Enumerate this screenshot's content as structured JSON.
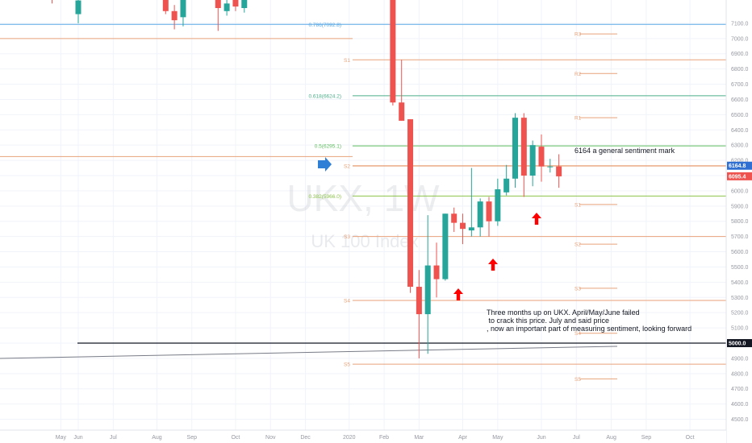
{
  "chart_data": {
    "type": "candlestick",
    "symbol_watermark": "UKX, 1W",
    "name_watermark": "UK 100 Index",
    "ylim": [
      4450,
      7200
    ],
    "y_ticks": [
      4500,
      4600,
      4700,
      4800,
      4900,
      5000,
      5100,
      5200,
      5300,
      5400,
      5500,
      5600,
      5700,
      5800,
      5900,
      6000,
      6100,
      6200,
      6300,
      6400,
      6500,
      6600,
      6700,
      6800,
      6900,
      7000,
      7100
    ],
    "y_tick_labels": [
      "4500.0",
      "4600.0",
      "4700.0",
      "4800.0",
      "4900.0",
      "5000.0",
      "5100.0",
      "5200.0",
      "5300.0",
      "5400.0",
      "5500.0",
      "5600.0",
      "5700.0",
      "5800.0",
      "5900.0",
      "6000.0",
      "6100.0",
      "6200.0",
      "6300.0",
      "6400.0",
      "6500.0",
      "6600.0",
      "6700.0",
      "6800.0",
      "6900.0",
      "7000.0",
      "7100.0"
    ],
    "x_tick_labels": [
      "May",
      "Jun",
      "Jul",
      "Aug",
      "Sep",
      "Oct",
      "Nov",
      "Dec",
      "2020",
      "Feb",
      "Mar",
      "Apr",
      "May",
      "Jun",
      "Jul",
      "Aug",
      "Sep",
      "Oct"
    ],
    "x_tick_slots": [
      -2,
      0,
      4,
      9,
      13,
      18,
      22,
      26,
      31,
      35,
      39,
      44,
      48,
      53,
      57,
      61,
      65,
      70
    ],
    "candles": [
      {
        "slot": -3,
        "open": 7330,
        "high": 7360,
        "low": 7230,
        "close": 7290
      },
      {
        "slot": 0,
        "open": 7160,
        "high": 7340,
        "low": 7100,
        "close": 7250
      },
      {
        "slot": 10,
        "open": 7270,
        "high": 7310,
        "low": 7160,
        "close": 7180
      },
      {
        "slot": 11,
        "open": 7180,
        "high": 7220,
        "low": 7060,
        "close": 7120
      },
      {
        "slot": 12,
        "open": 7140,
        "high": 7300,
        "low": 7080,
        "close": 7280
      },
      {
        "slot": 16,
        "open": 7300,
        "high": 7320,
        "low": 7050,
        "close": 7200
      },
      {
        "slot": 17,
        "open": 7180,
        "high": 7260,
        "low": 7150,
        "close": 7230
      },
      {
        "slot": 18,
        "open": 7260,
        "high": 7290,
        "low": 7180,
        "close": 7210
      },
      {
        "slot": 19,
        "open": 7200,
        "high": 7280,
        "low": 7170,
        "close": 7260
      },
      {
        "slot": 36,
        "open": 7460,
        "high": 7500,
        "low": 6560,
        "close": 6580
      },
      {
        "slot": 37,
        "open": 6580,
        "high": 6860,
        "low": 6460,
        "close": 6460
      },
      {
        "slot": 38,
        "open": 6470,
        "high": 6470,
        "low": 5330,
        "close": 5370
      },
      {
        "slot": 39,
        "open": 5370,
        "high": 5480,
        "low": 4900,
        "close": 5190
      },
      {
        "slot": 40,
        "open": 5190,
        "high": 5840,
        "low": 4930,
        "close": 5510
      },
      {
        "slot": 41,
        "open": 5510,
        "high": 5660,
        "low": 5300,
        "close": 5420
      },
      {
        "slot": 42,
        "open": 5420,
        "high": 5850,
        "low": 5410,
        "close": 5850
      },
      {
        "slot": 43,
        "open": 5850,
        "high": 5890,
        "low": 5730,
        "close": 5790
      },
      {
        "slot": 44,
        "open": 5790,
        "high": 5850,
        "low": 5650,
        "close": 5750
      },
      {
        "slot": 45,
        "open": 5740,
        "high": 6150,
        "low": 5700,
        "close": 5760
      },
      {
        "slot": 46,
        "open": 5760,
        "high": 5950,
        "low": 5700,
        "close": 5930
      },
      {
        "slot": 47,
        "open": 5930,
        "high": 5960,
        "low": 5700,
        "close": 5800
      },
      {
        "slot": 48,
        "open": 5800,
        "high": 6080,
        "low": 5770,
        "close": 6010
      },
      {
        "slot": 49,
        "open": 5990,
        "high": 6170,
        "low": 5970,
        "close": 6080
      },
      {
        "slot": 50,
        "open": 6080,
        "high": 6510,
        "low": 6020,
        "close": 6480
      },
      {
        "slot": 51,
        "open": 6480,
        "high": 6510,
        "low": 5960,
        "close": 6100
      },
      {
        "slot": 52,
        "open": 6100,
        "high": 6330,
        "low": 6030,
        "close": 6300
      },
      {
        "slot": 53,
        "open": 6290,
        "high": 6370,
        "low": 6060,
        "close": 6160
      },
      {
        "slot": 54,
        "open": 6160,
        "high": 6210,
        "low": 6120,
        "close": 6160
      },
      {
        "slot": 55,
        "open": 6160,
        "high": 6240,
        "low": 6020,
        "close": 6095
      }
    ],
    "fib_levels": [
      {
        "label": "0.786(7092.8)",
        "price": 7092.8,
        "color": "#5aa9e6"
      },
      {
        "label": "0.618(6624.2)",
        "price": 6624.2,
        "color": "#4caf8a"
      },
      {
        "label": "0.5(6295.1)",
        "price": 6295.1,
        "color": "#5fbf5f"
      },
      {
        "label": "0.382(5966.0)",
        "price": 5966.0,
        "color": "#8bc34a"
      }
    ],
    "pivot_left": [
      {
        "label": "S1",
        "price": 6860
      },
      {
        "label": "S2",
        "price": 6163
      },
      {
        "label": "S3",
        "price": 5700
      },
      {
        "label": "S4",
        "price": 5280
      },
      {
        "label": "S5",
        "price": 4862
      }
    ],
    "pivot_right": [
      {
        "label": "R3",
        "price": 7030
      },
      {
        "label": "R2",
        "price": 6770
      },
      {
        "label": "R1",
        "price": 6480
      },
      {
        "label": "S1",
        "price": 5910
      },
      {
        "label": "S2",
        "price": 5650
      },
      {
        "label": "S3",
        "price": 5360
      },
      {
        "label": "S4",
        "price": 5065
      },
      {
        "label": "S5",
        "price": 4765
      }
    ],
    "long_lines": [
      {
        "price": 7000,
        "color": "#e8a27a"
      },
      {
        "price": 6225,
        "color": "#e8a27a"
      }
    ],
    "current_price": {
      "value": 6164.8,
      "label": "6164.8",
      "color": "#2f6fd1"
    },
    "close_price": {
      "value": 6095.4,
      "label": "6095.4",
      "color": "#ef5350"
    },
    "level_5000": {
      "value": 5000,
      "label": "5000.0"
    },
    "annotations": {
      "sentiment_mark": "6164 a general sentiment mark",
      "note_line_1": "Three months up on UKX. April/May/June failed",
      "note_line_2": " to crack this price. July and said price",
      "note_line_3": ", now an important part of measuring sentiment, looking forward"
    },
    "colors": {
      "up": "#26a69a",
      "down": "#ef5350",
      "pivot": "#e8a27a",
      "arrow_red": "#ff0000",
      "arrow_blue": "#2f7fd6"
    }
  }
}
